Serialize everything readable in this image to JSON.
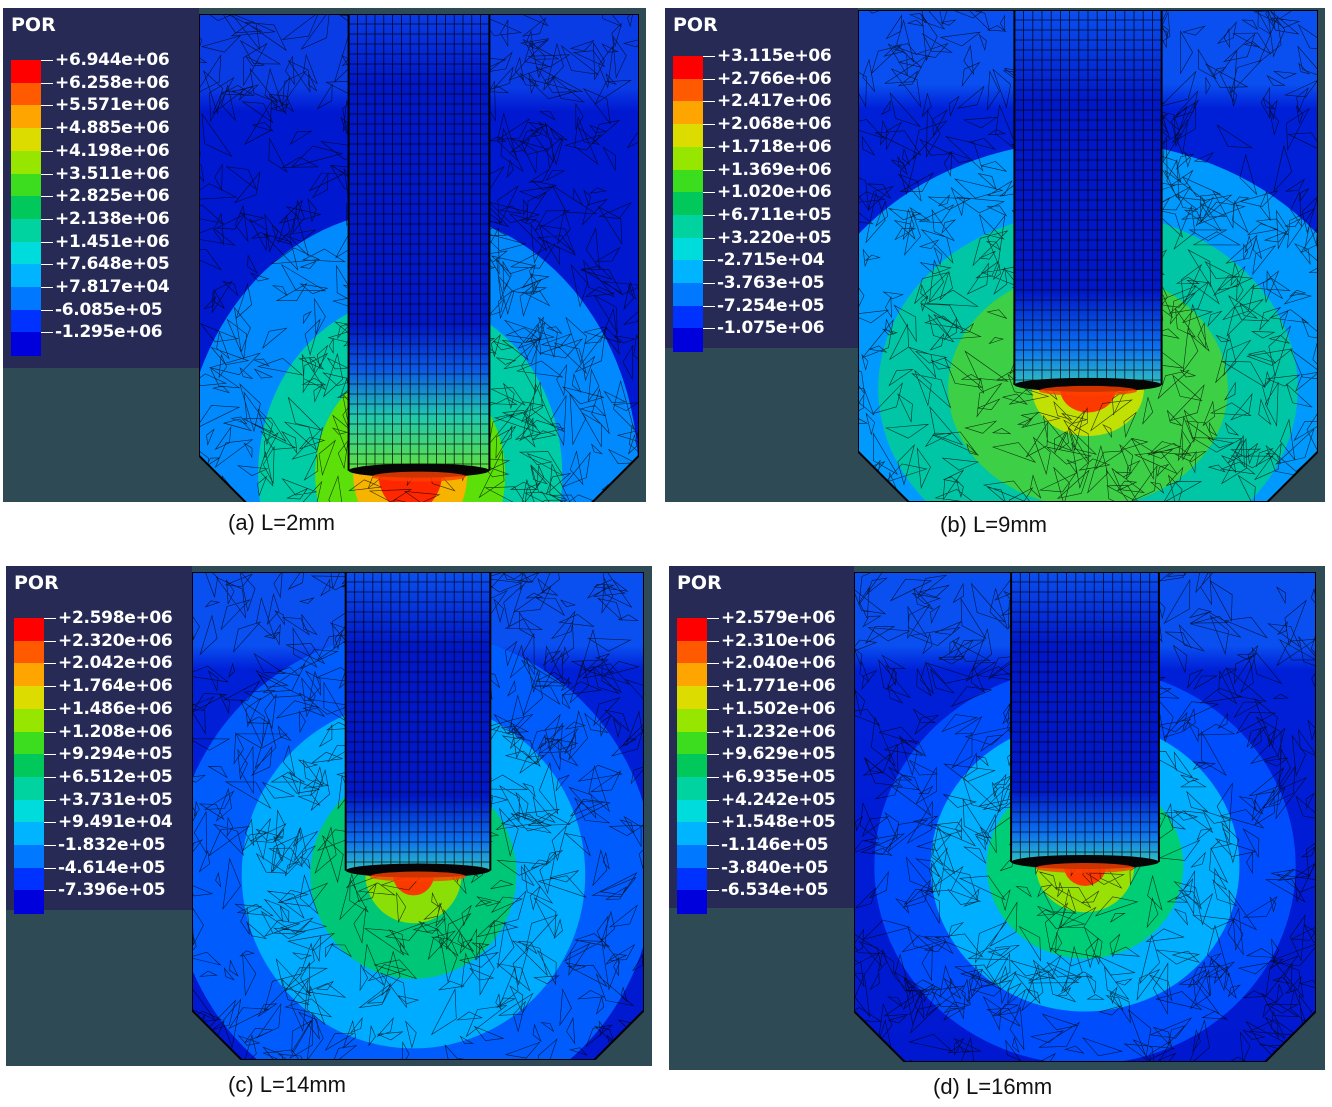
{
  "legend_title": "POR",
  "colors": [
    "#ff0000",
    "#ff5a00",
    "#ffa500",
    "#dcdc00",
    "#96e600",
    "#3cdc1e",
    "#00c85a",
    "#00d2a0",
    "#00dcdc",
    "#00b4ff",
    "#0078ff",
    "#0032ff",
    "#0000dc"
  ],
  "panels": [
    {
      "caption": "(a) L=2mm",
      "values": [
        "+6.944e+06",
        "+6.258e+06",
        "+5.571e+06",
        "+4.885e+06",
        "+4.198e+06",
        "+3.511e+06",
        "+2.825e+06",
        "+2.138e+06",
        "+1.451e+06",
        "+7.648e+05",
        "+7.817e+04",
        "-6.085e+05",
        "-1.295e+06"
      ]
    },
    {
      "caption": "(b) L=9mm",
      "values": [
        "+3.115e+06",
        "+2.766e+06",
        "+2.417e+06",
        "+2.068e+06",
        "+1.718e+06",
        "+1.369e+06",
        "+1.020e+06",
        "+6.711e+05",
        "+3.220e+05",
        "-2.715e+04",
        "-3.763e+05",
        "-7.254e+05",
        "-1.075e+06"
      ]
    },
    {
      "caption": "(c) L=14mm",
      "values": [
        "+2.598e+06",
        "+2.320e+06",
        "+2.042e+06",
        "+1.764e+06",
        "+1.486e+06",
        "+1.208e+06",
        "+9.294e+05",
        "+6.512e+05",
        "+3.731e+05",
        "+9.491e+04",
        "-1.832e+05",
        "-4.614e+05",
        "-7.396e+05"
      ]
    },
    {
      "caption": "(d) L=16mm",
      "values": [
        "+2.579e+06",
        "+2.310e+06",
        "+2.040e+06",
        "+1.771e+06",
        "+1.502e+06",
        "+1.232e+06",
        "+9.629e+05",
        "+6.935e+05",
        "+4.242e+05",
        "+1.548e+05",
        "-1.146e+05",
        "-3.840e+05",
        "-6.534e+05"
      ]
    }
  ]
}
